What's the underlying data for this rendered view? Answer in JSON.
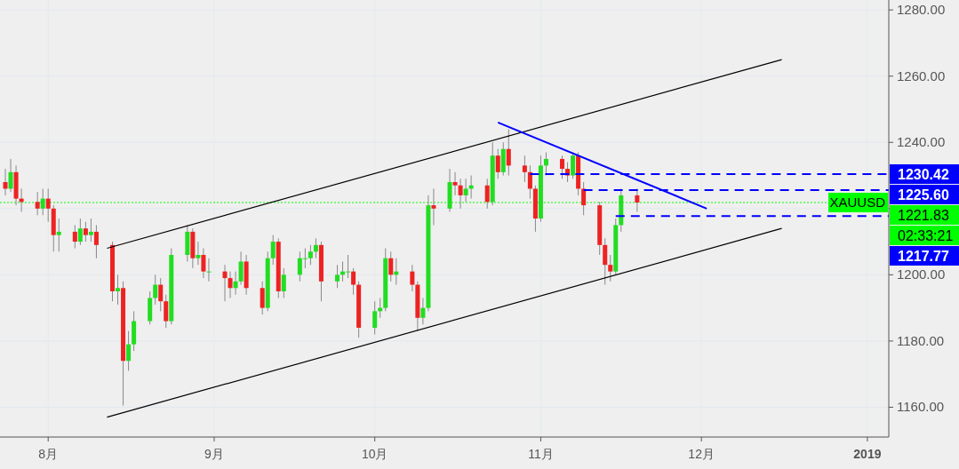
{
  "chart_data": {
    "type": "candlestick",
    "x": [
      "2018-07-24",
      "2018-07-25",
      "2018-07-26",
      "2018-07-27",
      "2018-07-30",
      "2018-07-31",
      "2018-08-01",
      "2018-08-02",
      "2018-08-03",
      "2018-08-06",
      "2018-08-07",
      "2018-08-08",
      "2018-08-09",
      "2018-08-10",
      "2018-08-13",
      "2018-08-14",
      "2018-08-15",
      "2018-08-16",
      "2018-08-17",
      "2018-08-20",
      "2018-08-21",
      "2018-08-22",
      "2018-08-23",
      "2018-08-24",
      "2018-08-27",
      "2018-08-28",
      "2018-08-29",
      "2018-08-30",
      "2018-08-31",
      "2018-09-03",
      "2018-09-04",
      "2018-09-05",
      "2018-09-06",
      "2018-09-07",
      "2018-09-10",
      "2018-09-11",
      "2018-09-12",
      "2018-09-13",
      "2018-09-14",
      "2018-09-17",
      "2018-09-18",
      "2018-09-19",
      "2018-09-20",
      "2018-09-21",
      "2018-09-24",
      "2018-09-25",
      "2018-09-26",
      "2018-09-27",
      "2018-09-28",
      "2018-10-01",
      "2018-10-02",
      "2018-10-03",
      "2018-10-04",
      "2018-10-05",
      "2018-10-08",
      "2018-10-09",
      "2018-10-10",
      "2018-10-11",
      "2018-10-12",
      "2018-10-15",
      "2018-10-16",
      "2018-10-17",
      "2018-10-18",
      "2018-10-19",
      "2018-10-22",
      "2018-10-23",
      "2018-10-24",
      "2018-10-25",
      "2018-10-26",
      "2018-10-29",
      "2018-10-30",
      "2018-10-31",
      "2018-11-01",
      "2018-11-02",
      "2018-11-05",
      "2018-11-06",
      "2018-11-07",
      "2018-11-08",
      "2018-11-09",
      "2018-11-12",
      "2018-11-13",
      "2018-11-14",
      "2018-11-15",
      "2018-11-16",
      "2018-11-19"
    ],
    "ohlc": [
      [
        1228,
        1232,
        1224,
        1226
      ],
      [
        1226,
        1235,
        1225,
        1231
      ],
      [
        1231,
        1233,
        1221,
        1223
      ],
      [
        1223,
        1226,
        1219,
        1222
      ],
      [
        1222,
        1225,
        1218,
        1220
      ],
      [
        1220,
        1226,
        1218,
        1223
      ],
      [
        1223,
        1226,
        1216,
        1220
      ],
      [
        1220,
        1221,
        1207,
        1212
      ],
      [
        1212,
        1217,
        1207,
        1213
      ],
      [
        1213,
        1215,
        1208,
        1210
      ],
      [
        1210,
        1217,
        1209,
        1214
      ],
      [
        1214,
        1216,
        1210,
        1212
      ],
      [
        1212,
        1217,
        1210,
        1213
      ],
      [
        1213,
        1215,
        1205,
        1209
      ],
      [
        1209,
        1210,
        1192,
        1195
      ],
      [
        1195,
        1200,
        1191,
        1196
      ],
      [
        1196,
        1198,
        1160.5,
        1174
      ],
      [
        1174,
        1183,
        1171,
        1179
      ],
      [
        1179,
        1189,
        1177,
        1186
      ],
      [
        1186,
        1195,
        1185,
        1193
      ],
      [
        1193,
        1200,
        1191,
        1197
      ],
      [
        1197,
        1199,
        1189,
        1192
      ],
      [
        1192,
        1194,
        1184,
        1186
      ],
      [
        1186,
        1208,
        1185,
        1206
      ],
      [
        1206,
        1215,
        1204,
        1213
      ],
      [
        1213,
        1214,
        1202,
        1205
      ],
      [
        1205,
        1210,
        1203,
        1206
      ],
      [
        1206,
        1208,
        1199,
        1201
      ],
      [
        1201,
        1205,
        1198,
        1201
      ],
      [
        1201,
        1203,
        1192,
        1199
      ],
      [
        1199,
        1201,
        1193,
        1196
      ],
      [
        1196,
        1201,
        1194,
        1198
      ],
      [
        1198,
        1207,
        1197,
        1204
      ],
      [
        1204,
        1206,
        1194,
        1196
      ],
      [
        1196,
        1198,
        1188,
        1190
      ],
      [
        1190,
        1207,
        1189,
        1205
      ],
      [
        1205,
        1212,
        1203,
        1210
      ],
      [
        1210,
        1211,
        1193,
        1195
      ],
      [
        1195,
        1202,
        1193,
        1200
      ],
      [
        1200,
        1207,
        1198,
        1205
      ],
      [
        1205,
        1208,
        1202,
        1205
      ],
      [
        1205,
        1209,
        1203,
        1207
      ],
      [
        1207,
        1211,
        1205,
        1209
      ],
      [
        1209,
        1210,
        1192,
        1198
      ],
      [
        1198,
        1203,
        1196,
        1200
      ],
      [
        1200,
        1204,
        1198,
        1201
      ],
      [
        1201,
        1206,
        1199,
        1201
      ],
      [
        1201,
        1202,
        1194,
        1197
      ],
      [
        1197,
        1198,
        1181,
        1184
      ],
      [
        1184,
        1192,
        1182,
        1189
      ],
      [
        1189,
        1193,
        1187,
        1190
      ],
      [
        1190,
        1208,
        1189,
        1205
      ],
      [
        1205,
        1207,
        1198,
        1200
      ],
      [
        1200,
        1205,
        1197,
        1201
      ],
      [
        1201,
        1203,
        1195,
        1197
      ],
      [
        1197,
        1198,
        1183,
        1187
      ],
      [
        1187,
        1193,
        1185,
        1190
      ],
      [
        1190,
        1224,
        1189,
        1221
      ],
      [
        1221,
        1226,
        1215,
        1220
      ],
      [
        1220,
        1232,
        1219,
        1228
      ],
      [
        1228,
        1231,
        1224,
        1227
      ],
      [
        1227,
        1229,
        1220,
        1224
      ],
      [
        1224,
        1229,
        1222,
        1226
      ],
      [
        1226,
        1230,
        1223,
        1227
      ],
      [
        1227,
        1229,
        1220,
        1222
      ],
      [
        1222,
        1240,
        1221,
        1236
      ],
      [
        1236,
        1238,
        1229,
        1231
      ],
      [
        1231,
        1240,
        1230,
        1238
      ],
      [
        1238,
        1244,
        1230,
        1233
      ],
      [
        1233,
        1236,
        1228,
        1231
      ],
      [
        1231,
        1233,
        1223,
        1226
      ],
      [
        1226,
        1227,
        1213,
        1217
      ],
      [
        1217,
        1236,
        1216,
        1233
      ],
      [
        1233,
        1237,
        1230,
        1235
      ],
      [
        1235,
        1236,
        1229,
        1232
      ],
      [
        1232,
        1234,
        1228,
        1230
      ],
      [
        1230,
        1237,
        1229,
        1236
      ],
      [
        1236,
        1237,
        1224,
        1226
      ],
      [
        1226,
        1228,
        1218,
        1221
      ],
      [
        1221,
        1222,
        1206,
        1209
      ],
      [
        1209,
        1211,
        1197,
        1203
      ],
      [
        1203,
        1206,
        1198,
        1201
      ],
      [
        1201,
        1217,
        1200,
        1215
      ],
      [
        1215,
        1226,
        1213,
        1224
      ],
      [
        1224,
        1226,
        1219,
        1221.83
      ]
    ],
    "series": [
      {
        "type": "line",
        "color": "#000000",
        "x": [
          "2018-08-12",
          "2018-12-16"
        ],
        "values": [
          1208,
          1265
        ]
      },
      {
        "type": "line",
        "color": "#000000",
        "x": [
          "2018-08-12",
          "2018-12-16"
        ],
        "values": [
          1157,
          1214
        ]
      },
      {
        "type": "line",
        "color": "#0000ff",
        "x": [
          "2018-10-24",
          "2018-12-02"
        ],
        "values": [
          1246,
          1220
        ]
      },
      {
        "type": "line",
        "color": "#0000ff",
        "line_style": "dashed",
        "x": [
          "2018-10-30",
          "2019-01-05"
        ],
        "values": [
          1230.42,
          1230.42
        ],
        "value_labels": [
          null,
          "1230.42"
        ]
      },
      {
        "type": "line",
        "color": "#0000ff",
        "line_style": "dashed",
        "x": [
          "2018-11-09",
          "2019-01-05"
        ],
        "values": [
          1225.6,
          1225.6
        ],
        "value_labels": [
          null,
          "1225.60"
        ]
      },
      {
        "type": "line",
        "color": "#0000ff",
        "line_style": "dashed",
        "x": [
          "2018-11-15",
          "2019-01-05"
        ],
        "values": [
          1217.77,
          1217.77
        ],
        "value_labels": [
          null,
          "1217.77"
        ]
      }
    ],
    "ref_lines": [
      {
        "axis": "y",
        "value": 1221.83,
        "label": "1221.83",
        "color": "#00ff00",
        "line_style": "dotted"
      }
    ],
    "annotations": [
      {
        "text": "XAUUSD",
        "y": 1221.83
      },
      "02:33:21"
    ],
    "xlim": [
      "2018-07-23",
      "2019-01-05"
    ],
    "xticks": [
      {
        "value": "2018-08-01",
        "label": "8月"
      },
      {
        "value": "2018-09-01",
        "label": "9月"
      },
      {
        "value": "2018-10-01",
        "label": "10月"
      },
      {
        "value": "2018-11-01",
        "label": "11月"
      },
      {
        "value": "2018-12-01",
        "label": "12月"
      },
      {
        "value": "2019-01-01",
        "label": "2019"
      }
    ],
    "ylim": [
      1151,
      1283
    ],
    "yticks": [
      {
        "value": 1160,
        "label": "1160.00"
      },
      {
        "value": 1180,
        "label": "1180.00"
      },
      {
        "value": 1200,
        "label": "1200.00"
      },
      {
        "value": 1220,
        "label": null
      },
      {
        "value": 1240,
        "label": "1240.00"
      },
      {
        "value": 1260,
        "label": "1260.00"
      },
      {
        "value": 1280,
        "label": "1280.00"
      }
    ],
    "grid": true
  }
}
